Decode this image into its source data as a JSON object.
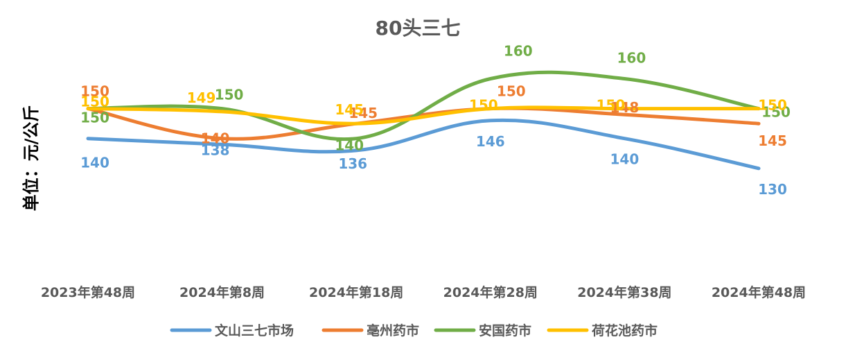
{
  "chart_data": {
    "type": "line",
    "title": "80头三七",
    "xlabel": "",
    "ylabel": "单位：元/公斤",
    "categories": [
      "2023年第48周",
      "2024年第8周",
      "2024年第18周",
      "2024年第28周",
      "2024年第38周",
      "2024年第48周"
    ],
    "ylim": [
      100,
      165
    ],
    "grid": false,
    "legend_position": "bottom",
    "smooth": true,
    "series": [
      {
        "name": "文山三七市场",
        "color": "#5B9BD5",
        "values": [
          140,
          138,
          136,
          146,
          140,
          130
        ]
      },
      {
        "name": "亳州药市",
        "color": "#ED7D31",
        "values": [
          150,
          140,
          145,
          150,
          148,
          145
        ]
      },
      {
        "name": "安国药市",
        "color": "#70AD47",
        "values": [
          150,
          150,
          140,
          160,
          160,
          150
        ]
      },
      {
        "name": "荷花池药市",
        "color": "#FFC000",
        "values": [
          150,
          149,
          145,
          150,
          150,
          150
        ]
      }
    ]
  }
}
